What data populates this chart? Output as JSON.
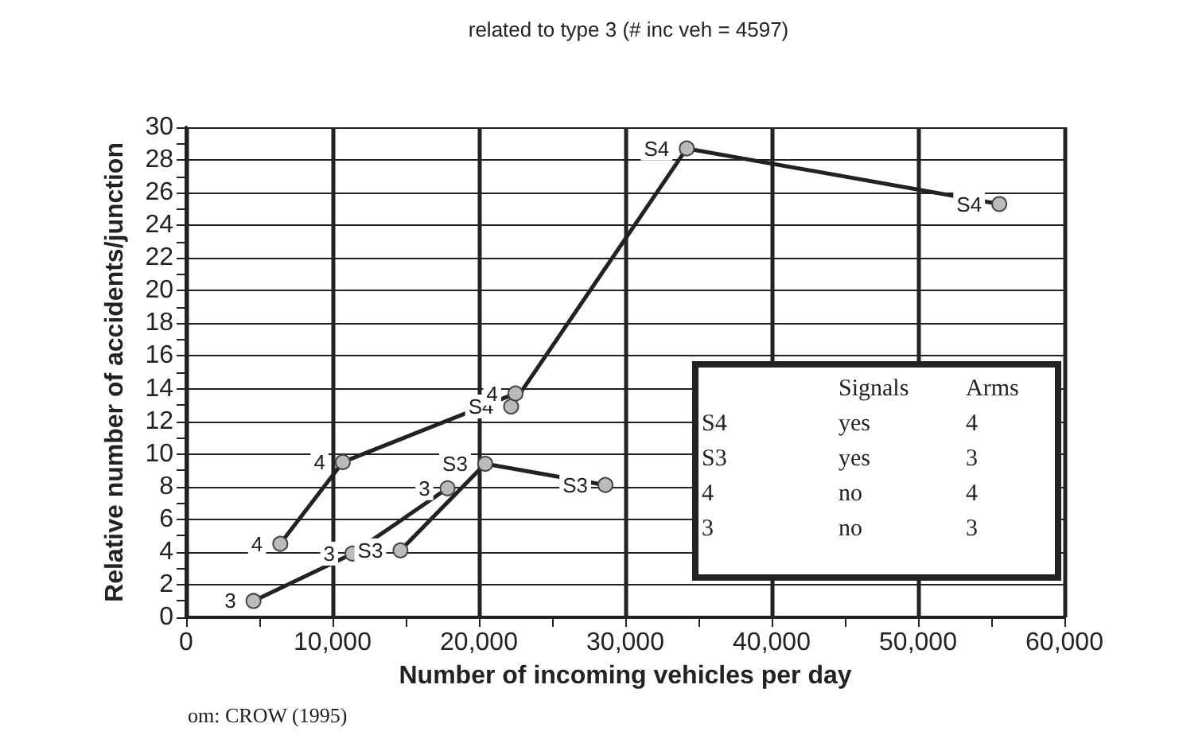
{
  "chart_data": {
    "type": "line",
    "title": "related to type 3 (# inc veh = 4597)",
    "xlabel": "Number of incoming vehicles per day",
    "ylabel": "Relative number of accidents/junction",
    "series": [
      {
        "name": "S4",
        "color": "#222222",
        "x": [
          22200,
          34200,
          55550
        ],
        "values": [
          12.9,
          28.7,
          25.3
        ]
      },
      {
        "name": "S3",
        "color": "#222222",
        "x": [
          14640,
          20430,
          28640
        ],
        "values": [
          4.1,
          9.4,
          8.1
        ]
      },
      {
        "name": "4",
        "color": "#222222",
        "x": [
          6430,
          10700,
          22500
        ],
        "values": [
          4.5,
          9.5,
          13.7
        ]
      },
      {
        "name": "3",
        "color": "#222222",
        "x": [
          4600,
          11360,
          17860
        ],
        "values": [
          1.0,
          3.9,
          7.9
        ]
      }
    ],
    "xlim": [
      0,
      60000
    ],
    "ylim": [
      0,
      30
    ],
    "xticks": [
      {
        "value": 0,
        "label": "0"
      },
      {
        "value": 5000,
        "label": null
      },
      {
        "value": 10000,
        "label": "10,000"
      },
      {
        "value": 15000,
        "label": null
      },
      {
        "value": 20000,
        "label": "20,000"
      },
      {
        "value": 25000,
        "label": null
      },
      {
        "value": 30000,
        "label": "30,000"
      },
      {
        "value": 35000,
        "label": null
      },
      {
        "value": 40000,
        "label": "40,000"
      },
      {
        "value": 45000,
        "label": null
      },
      {
        "value": 50000,
        "label": "50,000"
      },
      {
        "value": 55000,
        "label": null
      },
      {
        "value": 60000,
        "label": "60,000"
      }
    ],
    "yticks": [
      0,
      {
        "value": 1,
        "label": null
      },
      2,
      {
        "value": 3,
        "label": null
      },
      4,
      {
        "value": 5,
        "label": null
      },
      6,
      {
        "value": 7,
        "label": null
      },
      8,
      {
        "value": 9,
        "label": null
      },
      10,
      {
        "value": 11,
        "label": null
      },
      12,
      {
        "value": 13,
        "label": null
      },
      14,
      {
        "value": 15,
        "label": null
      },
      16,
      {
        "value": 17,
        "label": null
      },
      18,
      {
        "value": 19,
        "label": null
      },
      20,
      {
        "value": 21,
        "label": null
      },
      22,
      {
        "value": 23,
        "label": null
      },
      24,
      {
        "value": 25,
        "label": null
      },
      26,
      {
        "value": 27,
        "label": null
      },
      28,
      {
        "value": 29,
        "label": null
      },
      30
    ],
    "grid": true,
    "marker": "circle",
    "line_style": "solid",
    "annotations": [
      "Signals",
      "Arms",
      "S4",
      "yes",
      "4",
      "S3",
      "yes",
      "3",
      "4",
      "no",
      "4",
      "3",
      "no",
      "3",
      "om: CROW (1995)"
    ]
  }
}
